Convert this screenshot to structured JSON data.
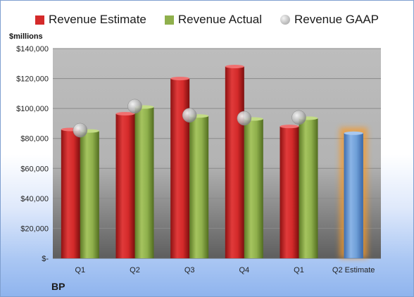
{
  "legend": {
    "estimate": "Revenue Estimate",
    "actual": "Revenue Actual",
    "gaap": "Revenue GAAP"
  },
  "unit_label": "$millions",
  "brand": "BP",
  "colors": {
    "estimate": "#d42a2a",
    "actual": "#8fb04c",
    "forecast": "#6f9fd8",
    "gaap": "#a8a8a8"
  },
  "chart_data": {
    "type": "bar",
    "categories": [
      "Q1",
      "Q2",
      "Q3",
      "Q4",
      "Q1",
      "Q2 Estimate"
    ],
    "series": [
      {
        "name": "Revenue Estimate",
        "values": [
          86000,
          96500,
          120000,
          128000,
          88000,
          83500
        ]
      },
      {
        "name": "Revenue Actual",
        "values": [
          85000,
          101000,
          95000,
          93000,
          93500,
          null
        ]
      },
      {
        "name": "Revenue GAAP",
        "values": [
          85500,
          101500,
          95500,
          93500,
          94000,
          null
        ]
      }
    ],
    "ylabel": "$millions",
    "ylim": [
      0,
      140000
    ],
    "yticks": [
      0,
      20000,
      40000,
      60000,
      80000,
      100000,
      120000,
      140000
    ],
    "ytick_labels": [
      "$-",
      "$20,000",
      "$40,000",
      "$60,000",
      "$80,000",
      "$100,000",
      "$120,000",
      "$140,000"
    ],
    "grid": true,
    "legend_position": "top"
  }
}
